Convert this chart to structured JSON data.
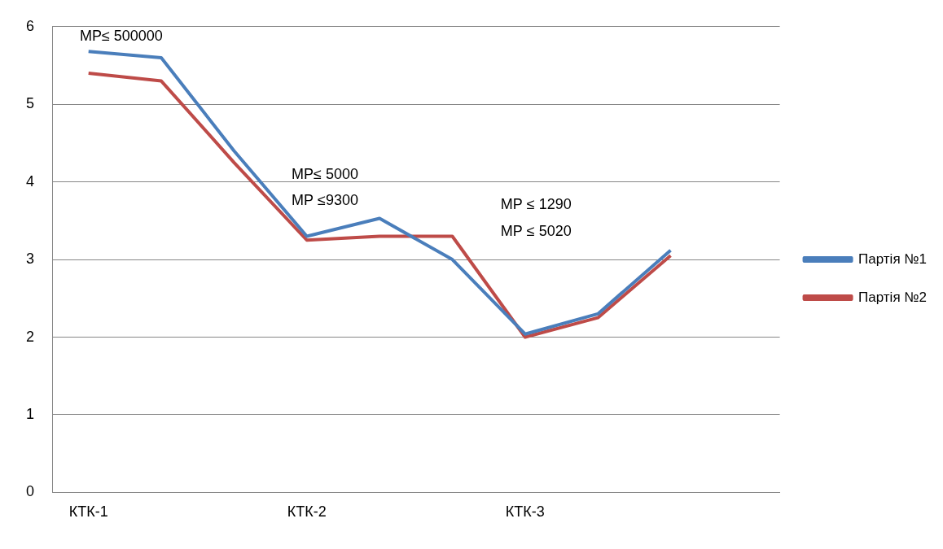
{
  "chart_data": {
    "type": "line",
    "categories": [
      "КТК-1",
      null,
      null,
      "КТК-2",
      null,
      null,
      "КТК-3",
      null,
      null,
      null
    ],
    "series": [
      {
        "name": "Партія №1",
        "color": "#4a7ebb",
        "values": [
          5.68,
          5.6,
          4.4,
          3.3,
          3.53,
          3.0,
          2.04,
          2.3,
          3.12,
          null
        ]
      },
      {
        "name": "Партія №2",
        "color": "#be4b48",
        "values": [
          5.4,
          5.3,
          4.25,
          3.25,
          3.3,
          3.3,
          2.0,
          2.25,
          3.05,
          null
        ]
      }
    ],
    "ylim": [
      0,
      6
    ],
    "yticks": [
      0,
      1,
      2,
      3,
      4,
      5,
      6
    ],
    "grid": "y",
    "legend": "right",
    "marker": "none",
    "line_style": "solid",
    "annotations": [
      "МР≤ 500000",
      "МР≤ 5000",
      "МР ≤9300",
      "МР ≤ 1290",
      "МР ≤ 5020"
    ]
  }
}
